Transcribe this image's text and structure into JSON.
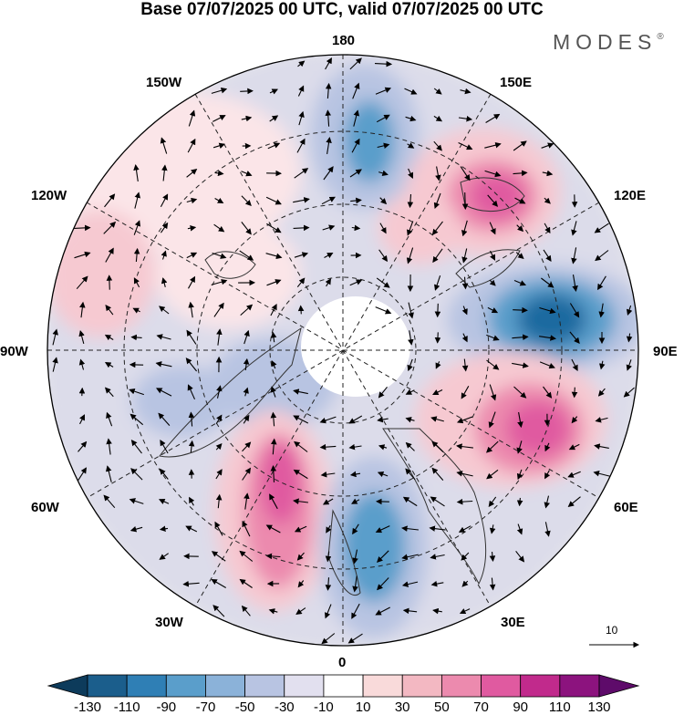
{
  "title": "Base 07/07/2025 00 UTC, valid 07/07/2025 00 UTC",
  "brand": "MODES",
  "brand_mark": "®",
  "longitude_labels": {
    "top": "180",
    "top_left": "150W",
    "top_right": "150E",
    "upper_left": "120W",
    "upper_right": "120E",
    "left": "90W",
    "right": "90E",
    "lower_left": "60W",
    "lower_right": "60E",
    "bottom_left": "30W",
    "bottom_right": "30E",
    "bottom": "0"
  },
  "reference_vector": {
    "label": "10"
  },
  "colorbar": {
    "labels": [
      "-130",
      "-110",
      "-90",
      "-70",
      "-50",
      "-30",
      "-10",
      "10",
      "30",
      "50",
      "70",
      "90",
      "110",
      "130"
    ],
    "colors": [
      "#0d3b5b",
      "#1b5e8c",
      "#2f7fb5",
      "#5a9ecb",
      "#8bb2d9",
      "#b8c4e2",
      "#e2e0ef",
      "#ffffff",
      "#f9dada",
      "#f3b8c2",
      "#ec8aae",
      "#e05aa0",
      "#c12a8c",
      "#8c137e",
      "#5e0b6a"
    ]
  },
  "map": {
    "anomaly_colors": {
      "strong_positive": "#e05aa0",
      "positive": "#ec8aae",
      "weak_positive": "#f6c9d1",
      "faint_positive": "#fbe5e8",
      "strong_negative": "#1f6aa0",
      "negative": "#5a9ecb",
      "weak_negative": "#b8c4e2",
      "faint_negative": "#dcdcea",
      "land_gray": "#d9d9d9"
    }
  }
}
